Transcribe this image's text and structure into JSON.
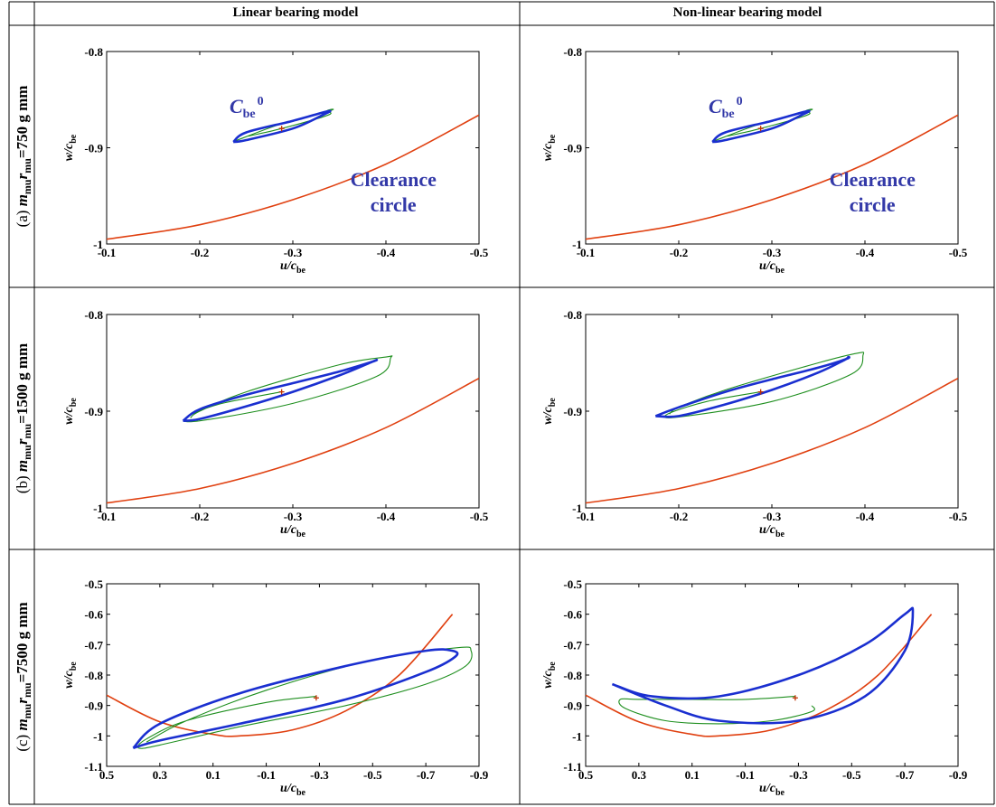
{
  "table": {
    "col_headers": [
      "Linear bearing model",
      "Non-linear bearing model"
    ],
    "row_headers": [
      {
        "prefix": "(a) ",
        "value": "=750 g mm"
      },
      {
        "prefix": "(b) ",
        "value": "=1500 g mm"
      },
      {
        "prefix": "(c) ",
        "value": "=7500 g mm"
      }
    ],
    "row_header_symbol": {
      "m": "m",
      "m_sub": "mu",
      "r": "r",
      "r_sub": "mu"
    }
  },
  "axes_labels": {
    "x": "u/c",
    "x_sub": "be",
    "y": "w/c",
    "y_sub": "be"
  },
  "annotations": {
    "orbit_label": "C",
    "orbit_label_sub": "be",
    "orbit_label_sup": "0",
    "clearance_line1": "Clearance",
    "clearance_line2": "circle"
  },
  "colors": {
    "clearance": "#e04010",
    "orbit_blue": "#1a2fd0",
    "orbit_green": "#1f8f1f",
    "center_marker": "#c03000",
    "annotation_text": "#3339a8"
  },
  "chart_data": [
    {
      "id": "a-linear",
      "type": "line",
      "xlim": [
        -0.1,
        -0.5
      ],
      "ylim": [
        -1,
        -0.8
      ],
      "xticks": [
        "-0.1",
        "-0.2",
        "-0.3",
        "-0.4",
        "-0.5"
      ],
      "yticks": [
        "-0.8",
        "-0.9",
        "-1"
      ],
      "series": [
        {
          "kind": "clearance",
          "x": [
            -0.1,
            -0.2,
            -0.3,
            -0.4,
            -0.5
          ],
          "y": [
            -0.995,
            -0.98,
            -0.954,
            -0.917,
            -0.866
          ]
        },
        {
          "kind": "green",
          "center": [
            -0.288,
            -0.88
          ],
          "x": [
            -0.238,
            -0.288,
            -0.338,
            -0.342,
            -0.336,
            -0.338,
            -0.288,
            -0.252
          ],
          "y": [
            -0.893,
            -0.875,
            -0.862,
            -0.86,
            -0.862,
            -0.866,
            -0.88,
            -0.888
          ]
        },
        {
          "kind": "blue",
          "x": [
            -0.236,
            -0.25,
            -0.3,
            -0.338,
            -0.332,
            -0.3,
            -0.25,
            -0.236
          ],
          "y": [
            -0.894,
            -0.884,
            -0.872,
            -0.862,
            -0.866,
            -0.88,
            -0.892,
            -0.894
          ]
        },
        {
          "kind": "marker",
          "x": [
            -0.288
          ],
          "y": [
            -0.88
          ]
        }
      ],
      "annotations": true
    },
    {
      "id": "a-nonlinear",
      "type": "line",
      "xlim": [
        -0.1,
        -0.5
      ],
      "ylim": [
        -1,
        -0.8
      ],
      "xticks": [
        "-0.1",
        "-0.2",
        "-0.3",
        "-0.4",
        "-0.5"
      ],
      "yticks": [
        "-0.8",
        "-0.9",
        "-1"
      ],
      "series": [
        {
          "kind": "clearance",
          "x": [
            -0.1,
            -0.2,
            -0.3,
            -0.4,
            -0.5
          ],
          "y": [
            -0.995,
            -0.98,
            -0.954,
            -0.917,
            -0.866
          ]
        },
        {
          "kind": "green",
          "x": [
            -0.238,
            -0.288,
            -0.338,
            -0.342,
            -0.336,
            -0.338,
            -0.288,
            -0.252
          ],
          "y": [
            -0.893,
            -0.875,
            -0.862,
            -0.86,
            -0.862,
            -0.866,
            -0.88,
            -0.888
          ]
        },
        {
          "kind": "blue",
          "x": [
            -0.236,
            -0.25,
            -0.3,
            -0.338,
            -0.332,
            -0.3,
            -0.25,
            -0.236
          ],
          "y": [
            -0.894,
            -0.884,
            -0.872,
            -0.862,
            -0.866,
            -0.88,
            -0.892,
            -0.894
          ]
        },
        {
          "kind": "marker",
          "x": [
            -0.288
          ],
          "y": [
            -0.88
          ]
        }
      ],
      "annotations": true
    },
    {
      "id": "b-linear",
      "type": "line",
      "xlim": [
        -0.1,
        -0.5
      ],
      "ylim": [
        -1,
        -0.8
      ],
      "xticks": [
        "-0.1",
        "-0.2",
        "-0.3",
        "-0.4",
        "-0.5"
      ],
      "yticks": [
        "-0.8",
        "-0.9",
        "-1"
      ],
      "series": [
        {
          "kind": "clearance",
          "x": [
            -0.1,
            -0.2,
            -0.3,
            -0.4,
            -0.5
          ],
          "y": [
            -0.995,
            -0.98,
            -0.954,
            -0.917,
            -0.866
          ]
        },
        {
          "kind": "green",
          "x": [
            -0.288,
            -0.22,
            -0.185,
            -0.2,
            -0.3,
            -0.39,
            -0.405,
            -0.4,
            -0.35,
            -0.25,
            -0.2,
            -0.19
          ],
          "y": [
            -0.88,
            -0.893,
            -0.907,
            -0.91,
            -0.892,
            -0.864,
            -0.845,
            -0.844,
            -0.852,
            -0.88,
            -0.9,
            -0.907
          ]
        },
        {
          "kind": "blue",
          "x": [
            -0.182,
            -0.2,
            -0.25,
            -0.3,
            -0.35,
            -0.385,
            -0.39,
            -0.385,
            -0.35,
            -0.3,
            -0.25,
            -0.2,
            -0.182
          ],
          "y": [
            -0.91,
            -0.898,
            -0.883,
            -0.871,
            -0.859,
            -0.849,
            -0.847,
            -0.849,
            -0.863,
            -0.88,
            -0.895,
            -0.908,
            -0.91
          ]
        },
        {
          "kind": "marker",
          "x": [
            -0.288
          ],
          "y": [
            -0.88
          ]
        }
      ]
    },
    {
      "id": "b-nonlinear",
      "type": "line",
      "xlim": [
        -0.1,
        -0.5
      ],
      "ylim": [
        -1,
        -0.8
      ],
      "xticks": [
        "-0.1",
        "-0.2",
        "-0.3",
        "-0.4",
        "-0.5"
      ],
      "yticks": [
        "-0.8",
        "-0.9",
        "-1"
      ],
      "series": [
        {
          "kind": "clearance",
          "x": [
            -0.1,
            -0.2,
            -0.3,
            -0.4,
            -0.5
          ],
          "y": [
            -0.995,
            -0.98,
            -0.954,
            -0.917,
            -0.866
          ]
        },
        {
          "kind": "green",
          "x": [
            -0.288,
            -0.23,
            -0.188,
            -0.2,
            -0.3,
            -0.385,
            -0.398,
            -0.392,
            -0.35,
            -0.25,
            -0.2,
            -0.19
          ],
          "y": [
            -0.88,
            -0.89,
            -0.903,
            -0.906,
            -0.89,
            -0.862,
            -0.842,
            -0.84,
            -0.85,
            -0.878,
            -0.896,
            -0.903
          ]
        },
        {
          "kind": "blue",
          "x": [
            -0.175,
            -0.2,
            -0.25,
            -0.3,
            -0.35,
            -0.38,
            -0.382,
            -0.378,
            -0.35,
            -0.3,
            -0.25,
            -0.2,
            -0.175
          ],
          "y": [
            -0.905,
            -0.896,
            -0.88,
            -0.867,
            -0.855,
            -0.846,
            -0.844,
            -0.847,
            -0.86,
            -0.878,
            -0.893,
            -0.905,
            -0.905
          ]
        },
        {
          "kind": "marker",
          "x": [
            -0.288
          ],
          "y": [
            -0.88
          ]
        }
      ]
    },
    {
      "id": "c-linear",
      "type": "line",
      "xlim": [
        0.5,
        -0.9
      ],
      "ylim": [
        -1.1,
        -0.5
      ],
      "xticks": [
        "0.5",
        "0.3",
        "0.1",
        "-0.1",
        "-0.3",
        "-0.5",
        "-0.7",
        "-0.9"
      ],
      "yticks": [
        "-0.5",
        "-0.6",
        "-0.7",
        "-0.8",
        "-0.9",
        "-1",
        "-1.1"
      ],
      "series": [
        {
          "kind": "clearance",
          "x": [
            0.5,
            0.3,
            0.1,
            0,
            -0.2,
            -0.4,
            -0.6,
            -0.8
          ],
          "y": [
            -0.866,
            -0.954,
            -0.995,
            -1,
            -0.98,
            -0.917,
            -0.8,
            -0.6
          ]
        },
        {
          "kind": "green",
          "x": [
            -0.288,
            -0.1,
            0.2,
            0.35,
            0.38,
            0.3,
            0,
            -0.4,
            -0.7,
            -0.85,
            -0.87,
            -0.82,
            -0.5,
            -0.1,
            0.2,
            0.35
          ],
          "y": [
            -0.87,
            -0.89,
            -0.95,
            -1.01,
            -1.04,
            -1.03,
            -0.97,
            -0.9,
            -0.83,
            -0.77,
            -0.72,
            -0.71,
            -0.75,
            -0.85,
            -0.95,
            -1.02
          ]
        },
        {
          "kind": "blue",
          "x": [
            0.4,
            0.3,
            0,
            -0.4,
            -0.7,
            -0.81,
            -0.8,
            -0.7,
            -0.4,
            0,
            0.3,
            0.4
          ],
          "y": [
            -1.04,
            -1.015,
            -0.96,
            -0.88,
            -0.79,
            -0.74,
            -0.72,
            -0.72,
            -0.77,
            -0.86,
            -0.96,
            -1.04
          ]
        },
        {
          "kind": "marker",
          "x": [
            -0.288
          ],
          "y": [
            -0.875
          ]
        }
      ]
    },
    {
      "id": "c-nonlinear",
      "type": "line",
      "xlim": [
        0.5,
        -0.9
      ],
      "ylim": [
        -1.1,
        -0.5
      ],
      "xticks": [
        "0.5",
        "0.3",
        "0.1",
        "-0.1",
        "-0.3",
        "-0.5",
        "-0.7",
        "-0.9"
      ],
      "yticks": [
        "-0.5",
        "-0.6",
        "-0.7",
        "-0.8",
        "-0.9",
        "-1",
        "-1.1"
      ],
      "series": [
        {
          "kind": "clearance",
          "x": [
            0.5,
            0.3,
            0.1,
            0,
            -0.2,
            -0.4,
            -0.6,
            -0.8
          ],
          "y": [
            -0.866,
            -0.954,
            -0.995,
            -1,
            -0.98,
            -0.917,
            -0.8,
            -0.6
          ]
        },
        {
          "kind": "green",
          "x": [
            -0.288,
            -0.1,
            0.1,
            0.3,
            0.37,
            0.35,
            0.2,
            0,
            -0.2,
            -0.35,
            -0.35
          ],
          "y": [
            -0.87,
            -0.88,
            -0.88,
            -0.88,
            -0.88,
            -0.91,
            -0.95,
            -0.96,
            -0.95,
            -0.92,
            -0.9
          ]
        },
        {
          "kind": "blue",
          "x": [
            0.4,
            0.2,
            0,
            -0.3,
            -0.55,
            -0.7,
            -0.73,
            -0.7,
            -0.55,
            -0.3,
            0,
            0.25,
            0.4
          ],
          "y": [
            -0.83,
            -0.9,
            -0.95,
            -0.95,
            -0.87,
            -0.72,
            -0.59,
            -0.6,
            -0.7,
            -0.8,
            -0.87,
            -0.87,
            -0.83
          ]
        },
        {
          "kind": "marker",
          "x": [
            -0.288
          ],
          "y": [
            -0.875
          ]
        }
      ]
    }
  ]
}
